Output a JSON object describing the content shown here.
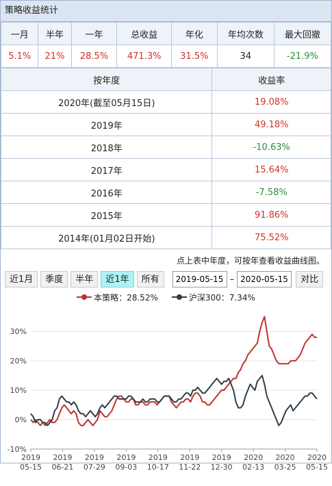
{
  "title": "策略收益统计",
  "summary": {
    "headers": [
      "一月",
      "半年",
      "一年",
      "总收益",
      "年化",
      "年均次数",
      "最大回撤"
    ],
    "values": [
      "5.1%",
      "21%",
      "28.5%",
      "471.3%",
      "31.5%",
      "34",
      "-21.9%"
    ],
    "value_colors": [
      "red",
      "red",
      "red",
      "red",
      "red",
      "neutral",
      "green"
    ]
  },
  "years": {
    "header_year": "按年度",
    "header_return": "收益率",
    "rows": [
      {
        "year": "2020年(截至05月15日)",
        "return": "19.08%",
        "color": "red"
      },
      {
        "year": "2019年",
        "return": "49.18%",
        "color": "red"
      },
      {
        "year": "2018年",
        "return": "-10.63%",
        "color": "green"
      },
      {
        "year": "2017年",
        "return": "15.64%",
        "color": "red"
      },
      {
        "year": "2016年",
        "return": "-7.58%",
        "color": "green"
      },
      {
        "year": "2015年",
        "return": "91.86%",
        "color": "red"
      },
      {
        "year": "2014年(01月02日开始)",
        "return": "75.52%",
        "color": "red"
      }
    ]
  },
  "note": "点上表中年度，可按年查看收益曲线图。",
  "toolbar": {
    "periods": [
      "近1月",
      "季度",
      "半年",
      "近1年",
      "所有"
    ],
    "active_period": "近1年",
    "start_date": "2019-05-15",
    "dash": "–",
    "end_date": "2020-05-15",
    "compare": "对比"
  },
  "colors": {
    "strategy": "#c0322e",
    "index": "#2f3d4a",
    "positive": "#d0312d",
    "negative": "#2e8b3a"
  },
  "chart_data": {
    "type": "line",
    "legend": [
      {
        "name": "本策略：28.52%",
        "color": "#c0322e"
      },
      {
        "name": "沪深300：7.34%",
        "color": "#2f3d4a"
      }
    ],
    "y_ticks": [
      "-10%",
      "0%",
      "10%",
      "20%",
      "30%"
    ],
    "ylim": [
      -10,
      37
    ],
    "x_tick_labels": [
      [
        "2019",
        "05-15"
      ],
      [
        "2019",
        "06-21"
      ],
      [
        "2019",
        "07-29"
      ],
      [
        "2019",
        "09-03"
      ],
      [
        "2019",
        "10-17"
      ],
      [
        "2019",
        "11-22"
      ],
      [
        "2019",
        "12-30"
      ],
      [
        "2020",
        "02-13"
      ],
      [
        "2020",
        "03-25"
      ],
      [
        "2020",
        "05-15"
      ]
    ],
    "series": [
      {
        "name": "本策略",
        "color": "#c0322e",
        "x": [
          0,
          2,
          4,
          6,
          8,
          10,
          12,
          14,
          16,
          18,
          20,
          22,
          24,
          26,
          28,
          30,
          32,
          34,
          36,
          38,
          40,
          42,
          44,
          46,
          48,
          50,
          52,
          54,
          56,
          58,
          60,
          62,
          64,
          66,
          68,
          70,
          72,
          74,
          76,
          78,
          80,
          82,
          84,
          86,
          88,
          90,
          92,
          94,
          96,
          98,
          100,
          102,
          104,
          106,
          108,
          110,
          112,
          114,
          116,
          118,
          120,
          122,
          124,
          126,
          128,
          130,
          132,
          134,
          136,
          138,
          140,
          142,
          144,
          146,
          148,
          150,
          152,
          154,
          156,
          158,
          160,
          162,
          164,
          166,
          168,
          170,
          172,
          174,
          176,
          178,
          180,
          182,
          184,
          186,
          188,
          190,
          192,
          194,
          196,
          198,
          200,
          202,
          204,
          206,
          208,
          210,
          212,
          214,
          216,
          218,
          220,
          222,
          224,
          226,
          228,
          230,
          232,
          234,
          236,
          238,
          240
        ],
        "values": [
          0,
          -1,
          0,
          -1,
          -2,
          -1,
          -2,
          -1,
          0,
          -1,
          -1,
          0,
          2,
          4,
          5,
          4,
          3,
          2,
          3,
          2,
          -1,
          -2,
          -2,
          -1,
          0,
          -1,
          -2,
          -1,
          0,
          3,
          2,
          1,
          1,
          2,
          3,
          5,
          7,
          8,
          8,
          7,
          6,
          6,
          7,
          7,
          5,
          5,
          6,
          6,
          5,
          5,
          6,
          6,
          6,
          5,
          6,
          7,
          8,
          8,
          8,
          6,
          5,
          4,
          5,
          6,
          6,
          7,
          7,
          6,
          8,
          9,
          9,
          8,
          6,
          6,
          5,
          5,
          6,
          7,
          8,
          9,
          10,
          10,
          11,
          12,
          13,
          14,
          14,
          16,
          17,
          19,
          20,
          22,
          23,
          24,
          25,
          26,
          30,
          33,
          35,
          30,
          25,
          24,
          22,
          20,
          19,
          19,
          19,
          19,
          19,
          20,
          20,
          20,
          21,
          22,
          24,
          26,
          27,
          28,
          29,
          28,
          28
        ]
      },
      {
        "name": "沪深300",
        "color": "#2f3d4a",
        "x": [
          0,
          2,
          4,
          6,
          8,
          10,
          12,
          14,
          16,
          18,
          20,
          22,
          24,
          26,
          28,
          30,
          32,
          34,
          36,
          38,
          40,
          42,
          44,
          46,
          48,
          50,
          52,
          54,
          56,
          58,
          60,
          62,
          64,
          66,
          68,
          70,
          72,
          74,
          76,
          78,
          80,
          82,
          84,
          86,
          88,
          90,
          92,
          94,
          96,
          98,
          100,
          102,
          104,
          106,
          108,
          110,
          112,
          114,
          116,
          118,
          120,
          122,
          124,
          126,
          128,
          130,
          132,
          134,
          136,
          138,
          140,
          142,
          144,
          146,
          148,
          150,
          152,
          154,
          156,
          158,
          160,
          162,
          164,
          166,
          168,
          170,
          172,
          174,
          176,
          178,
          180,
          182,
          184,
          186,
          188,
          190,
          192,
          194,
          196,
          198,
          200,
          202,
          204,
          206,
          208,
          210,
          212,
          214,
          216,
          218,
          220,
          222,
          224,
          226,
          228,
          230,
          232,
          234,
          236,
          238,
          240
        ],
        "values": [
          2,
          1,
          -1,
          0,
          0,
          -1,
          -1,
          -2,
          -1,
          0,
          3,
          4,
          7,
          8,
          7,
          6,
          6,
          5,
          6,
          5,
          3,
          2,
          2,
          1,
          2,
          3,
          2,
          1,
          2,
          4,
          5,
          4,
          5,
          6,
          7,
          8,
          8,
          7,
          7,
          7,
          7,
          8,
          8,
          7,
          6,
          6,
          6,
          7,
          6,
          6,
          7,
          7,
          7,
          6,
          6,
          7,
          8,
          8,
          8,
          7,
          6,
          6,
          7,
          7,
          8,
          9,
          9,
          8,
          10,
          10,
          11,
          10,
          9,
          9,
          10,
          11,
          12,
          13,
          14,
          13,
          12,
          13,
          13,
          14,
          12,
          10,
          6,
          4,
          4,
          5,
          8,
          10,
          12,
          11,
          10,
          13,
          14,
          15,
          12,
          8,
          6,
          4,
          2,
          0,
          -2,
          -1,
          1,
          3,
          4,
          5,
          3,
          4,
          5,
          6,
          7,
          8,
          8,
          9,
          9,
          8,
          7
        ]
      }
    ]
  }
}
